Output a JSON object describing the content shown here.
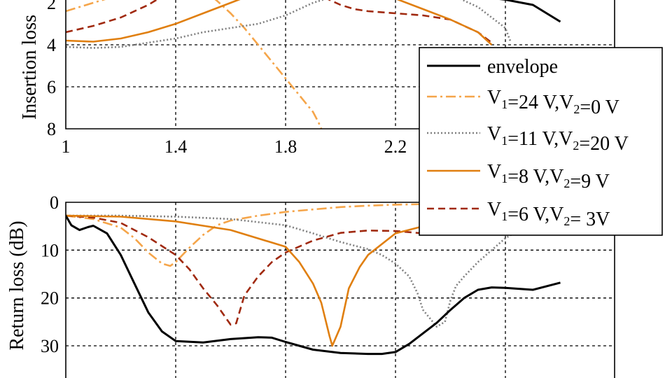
{
  "chart_data": [
    {
      "type": "line",
      "ylabel": "Insertion loss",
      "xlim": [
        1,
        2.8
      ],
      "ylim": [
        8,
        1.5
      ],
      "x_ticks": [
        "1",
        "1.4",
        "1.8",
        "2.2"
      ],
      "y_ticks": [
        "2",
        "4",
        "6",
        "8"
      ],
      "grid": true,
      "series": [
        {
          "key": "env",
          "x": [
            2.35,
            2.4,
            2.5,
            2.6,
            2.7,
            2.8
          ],
          "y": [
            1.5,
            1.6,
            1.7,
            1.85,
            2.1,
            2.9
          ]
        },
        {
          "key": "s24",
          "x": [
            1,
            1.05,
            1.1,
            1.15,
            1.2,
            1.22,
            1.5,
            1.52,
            1.55,
            1.6,
            1.65,
            1.7,
            1.75,
            1.8,
            1.85,
            1.9,
            1.92,
            1.93
          ],
          "y": [
            2.4,
            2.2,
            2.0,
            1.8,
            1.6,
            1.5,
            1.5,
            1.6,
            1.9,
            2.5,
            3.2,
            4.0,
            4.8,
            5.6,
            6.4,
            7.2,
            7.7,
            8.0
          ]
        },
        {
          "key": "s11",
          "x": [
            1,
            1.1,
            1.2,
            1.3,
            1.4,
            1.5,
            1.6,
            1.7,
            1.8,
            1.9,
            1.95,
            2.0,
            2.05,
            2.1,
            2.2,
            2.3,
            2.35,
            2.4,
            2.45,
            2.5,
            2.55,
            2.6,
            2.62
          ],
          "y": [
            4.1,
            4.15,
            4.1,
            3.9,
            3.7,
            3.4,
            3.2,
            3.0,
            2.6,
            2.0,
            1.8,
            1.7,
            1.6,
            1.5,
            1.5,
            1.5,
            1.5,
            1.6,
            1.9,
            2.2,
            2.7,
            3.2,
            3.9
          ]
        },
        {
          "key": "s8",
          "x": [
            1,
            1.1,
            1.2,
            1.3,
            1.4,
            1.5,
            1.6,
            1.65,
            1.7,
            2.15,
            2.2,
            2.3,
            2.4,
            2.5,
            2.55
          ],
          "y": [
            3.8,
            3.85,
            3.7,
            3.4,
            3.0,
            2.5,
            2.0,
            1.75,
            1.5,
            1.5,
            1.8,
            2.3,
            2.8,
            3.4,
            4.0
          ]
        },
        {
          "key": "s6",
          "x": [
            1,
            1.1,
            1.2,
            1.3,
            1.35,
            1.36,
            1.9,
            1.95,
            2.0,
            2.05,
            2.1,
            2.2,
            2.3,
            2.4,
            2.45,
            2.5,
            2.55
          ],
          "y": [
            3.4,
            3.1,
            2.7,
            2.1,
            1.7,
            1.5,
            1.5,
            1.8,
            2.1,
            2.3,
            2.4,
            2.5,
            2.6,
            2.8,
            3.1,
            3.4,
            3.9
          ]
        }
      ]
    },
    {
      "type": "line",
      "ylabel": "Return loss (dB)",
      "xlim": [
        1,
        2.8
      ],
      "ylim": [
        0,
        35
      ],
      "x_ticks": [],
      "y_ticks": [
        "0",
        "10",
        "20",
        "30"
      ],
      "grid": true,
      "series": [
        {
          "key": "env",
          "x": [
            1,
            1.02,
            1.05,
            1.08,
            1.1,
            1.15,
            1.2,
            1.25,
            1.3,
            1.35,
            1.4,
            1.5,
            1.6,
            1.7,
            1.75,
            1.8,
            1.9,
            2.0,
            2.1,
            2.15,
            2.2,
            2.25,
            2.3,
            2.35,
            2.4,
            2.45,
            2.5,
            2.55,
            2.6,
            2.7,
            2.8
          ],
          "y": [
            2.8,
            4.8,
            5.8,
            5.2,
            4.9,
            6.5,
            11,
            17,
            23,
            27,
            29,
            29.3,
            28.6,
            28.2,
            28.3,
            29.2,
            30.8,
            31.5,
            31.7,
            31.7,
            31.3,
            29.6,
            27.4,
            25.2,
            22.5,
            20,
            18.3,
            17.8,
            17.9,
            18.3,
            16.8
          ]
        },
        {
          "key": "s24",
          "x": [
            1,
            1.1,
            1.2,
            1.25,
            1.3,
            1.35,
            1.38,
            1.4,
            1.45,
            1.5,
            1.55,
            1.6,
            1.7,
            1.8,
            1.9,
            2.0,
            2.1,
            2.2,
            2.3,
            2.4,
            2.5
          ],
          "y": [
            2.8,
            3.5,
            5.3,
            7.5,
            10.5,
            12.8,
            13.3,
            12.5,
            9.5,
            6.8,
            4.8,
            3.8,
            2.8,
            2.0,
            1.5,
            1.0,
            0.7,
            0.5,
            0.4,
            0.3,
            0.3
          ]
        },
        {
          "key": "s11",
          "x": [
            1,
            1.2,
            1.4,
            1.6,
            1.8,
            1.9,
            2.0,
            2.1,
            2.15,
            2.2,
            2.25,
            2.28,
            2.3,
            2.35,
            2.38,
            2.4,
            2.42,
            2.45,
            2.5,
            2.55,
            2.6,
            2.63
          ],
          "y": [
            2.8,
            2.8,
            3.0,
            3.5,
            4.8,
            6.5,
            8.3,
            9.8,
            11,
            12.8,
            15.5,
            19,
            22.5,
            26,
            25,
            20.5,
            17.5,
            15.5,
            12.5,
            10,
            7.5,
            6.5
          ]
        },
        {
          "key": "s8",
          "x": [
            1,
            1.2,
            1.4,
            1.6,
            1.8,
            1.85,
            1.9,
            1.93,
            1.96,
            1.97,
            2.0,
            2.03,
            2.07,
            2.1,
            2.2,
            2.3,
            2.35
          ],
          "y": [
            2.8,
            3.0,
            4.0,
            5.8,
            9.3,
            12.5,
            17,
            21,
            28,
            30,
            26,
            18,
            13.5,
            11,
            6.5,
            5,
            3
          ]
        },
        {
          "key": "s6",
          "x": [
            1,
            1.1,
            1.2,
            1.3,
            1.4,
            1.45,
            1.5,
            1.55,
            1.6,
            1.62,
            1.65,
            1.7,
            1.75,
            1.8,
            1.9,
            2.0,
            2.1,
            2.2,
            2.3,
            2.35
          ],
          "y": [
            2.8,
            3.2,
            4.3,
            7.3,
            11,
            14,
            18,
            21.5,
            25.6,
            25.3,
            19.5,
            15.5,
            12.5,
            10.5,
            8.0,
            6.4,
            5.9,
            6.0,
            6.5,
            6.8
          ]
        }
      ]
    }
  ],
  "legend": {
    "placement": "right",
    "items": [
      {
        "key": "env",
        "label": "envelope"
      },
      {
        "key": "s24",
        "label": "V1=24 V,V2=0 V"
      },
      {
        "key": "s11",
        "label": "V1=11 V,V2=20 V"
      },
      {
        "key": "s8",
        "label": "V1=8 V,V2=9 V"
      },
      {
        "key": "s6",
        "label": "V1=6 V,V2= 3V"
      }
    ]
  },
  "styles": {
    "env": {
      "color": "#000000",
      "dash": ""
    },
    "s24": {
      "color": "#f5a54a",
      "dash": "14 5 3 5"
    },
    "s11": {
      "color": "#808080",
      "dash": "2 3"
    },
    "s8": {
      "color": "#e07f10",
      "dash": ""
    },
    "s6": {
      "color": "#a0290e",
      "dash": "10 6"
    }
  }
}
